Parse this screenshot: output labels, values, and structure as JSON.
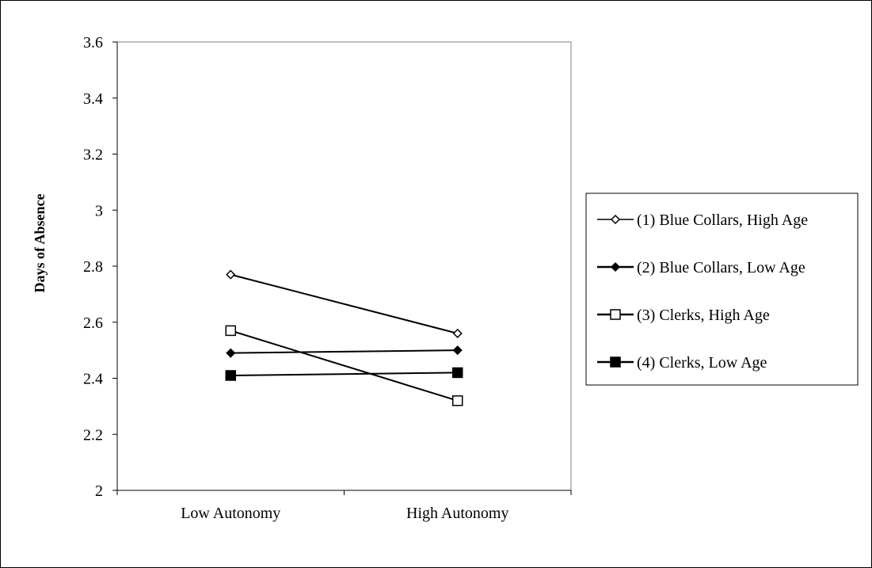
{
  "chart_data": {
    "type": "line",
    "title": "",
    "xlabel": "",
    "ylabel": "Days of Absence",
    "categories": [
      "Low Autonomy",
      "High Autonomy"
    ],
    "ylim": [
      2,
      3.6
    ],
    "yticks": [
      "2",
      "2.2",
      "2.4",
      "2.6",
      "2.8",
      "3",
      "3.2",
      "3.4",
      "3.6"
    ],
    "grid": false,
    "legend_position": "right",
    "series": [
      {
        "name": "(1) Blue Collars, High Age",
        "values": [
          2.77,
          2.56
        ],
        "marker": "diamond-open",
        "color": "#000000"
      },
      {
        "name": "(2) Blue Collars, Low Age",
        "values": [
          2.49,
          2.5
        ],
        "marker": "diamond-filled",
        "color": "#000000"
      },
      {
        "name": "(3) Clerks, High Age",
        "values": [
          2.57,
          2.32
        ],
        "marker": "square-open",
        "color": "#000000"
      },
      {
        "name": "(4) Clerks, Low Age",
        "values": [
          2.41,
          2.42
        ],
        "marker": "square-filled",
        "color": "#000000"
      }
    ]
  }
}
